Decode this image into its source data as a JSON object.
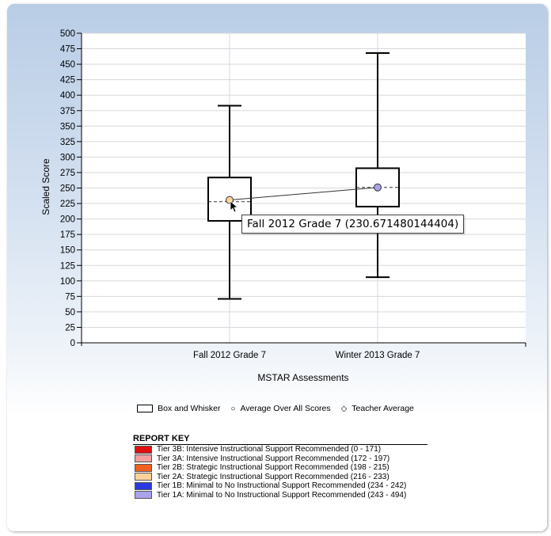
{
  "chart_data": {
    "type": "box",
    "xlabel": "MSTAR Assessments",
    "ylabel": "Scaled Score",
    "ylim": [
      0,
      500
    ],
    "ytick_step": 25,
    "grid": true,
    "categories": [
      "Fall 2012 Grade 7",
      "Winter 2013 Grade 7"
    ],
    "boxes": [
      {
        "category": "Fall 2012 Grade 7",
        "min": 71,
        "q1": 197,
        "median": 228,
        "q3": 267,
        "max": 383,
        "average": 230.671480144404,
        "average_color": "#fbd39a"
      },
      {
        "category": "Winter 2013 Grade 7",
        "min": 106,
        "q1": 220,
        "median": 251,
        "q3": 282,
        "max": 468,
        "average": 251,
        "average_color": "#a9a3ec"
      }
    ]
  },
  "legend": {
    "box_label": "Box and Whisker",
    "average_label": "Average Over All Scores",
    "teacher_label": "Teacher Average",
    "average_symbol": "○",
    "teacher_symbol": "◇"
  },
  "tooltip": {
    "text": "Fall 2012 Grade 7 (230.671480144404)"
  },
  "report_key": {
    "title": "REPORT KEY",
    "items": [
      {
        "label": "Tier 3B: Intensive Instructional Support Recommended (0 - 171)",
        "color": "#e01010"
      },
      {
        "label": "Tier 3A: Intensive Instructional Support Recommended (172 - 197)",
        "color": "#f0a0a0"
      },
      {
        "label": "Tier 2B: Strategic Instructional Support Recommended (198 - 215)",
        "color": "#f06020"
      },
      {
        "label": "Tier 2A: Strategic Instructional Support Recommended (216 - 233)",
        "color": "#fbd39a"
      },
      {
        "label": "Tier 1B: Minimal to No Instructional Support Recommended (234 - 242)",
        "color": "#2a3ae0"
      },
      {
        "label": "Tier 1A: Minimal to No Instructional Support Recommended (243 - 494)",
        "color": "#a9a3ec"
      }
    ]
  }
}
